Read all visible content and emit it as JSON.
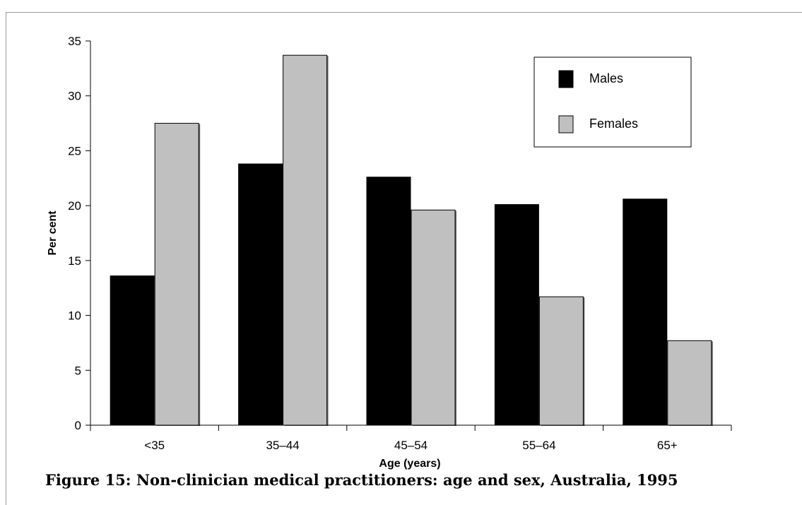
{
  "caption": "Figure 15: Non-clinician medical practitioners: age and sex, Australia, 1995",
  "chart_data": {
    "type": "bar",
    "title": "",
    "xlabel": "Age (years)",
    "ylabel": "Per cent",
    "ylim": [
      0,
      35
    ],
    "yticks": [
      0,
      5,
      10,
      15,
      20,
      25,
      30,
      35
    ],
    "categories": [
      "<35",
      "35–44",
      "45–54",
      "55–64",
      "65+"
    ],
    "series": [
      {
        "name": "Males",
        "color": "#000000",
        "values": [
          13.6,
          23.8,
          22.6,
          20.1,
          20.6
        ]
      },
      {
        "name": "Females",
        "color": "#c0c0c0",
        "values": [
          27.5,
          33.7,
          19.6,
          11.7,
          7.7
        ]
      }
    ],
    "grid": false,
    "legend_position": "top-right"
  }
}
